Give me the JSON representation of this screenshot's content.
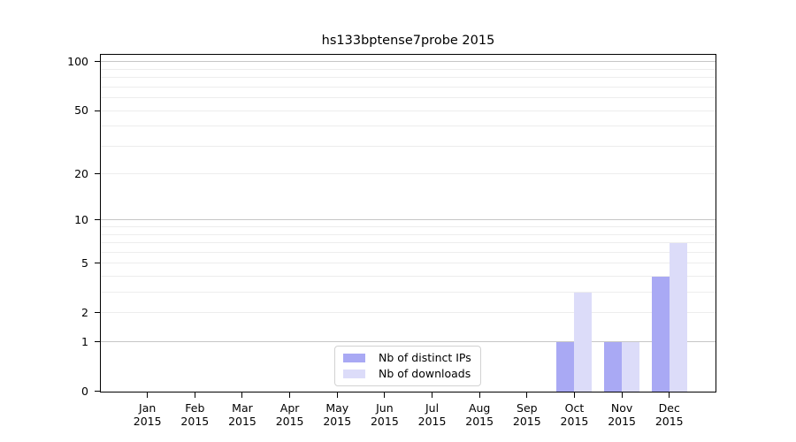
{
  "chart_data": {
    "type": "bar",
    "title": "hs133bptense7probe 2015",
    "categories": [
      "Jan 2015",
      "Feb 2015",
      "Mar 2015",
      "Apr 2015",
      "May 2015",
      "Jun 2015",
      "Jul 2015",
      "Aug 2015",
      "Sep 2015",
      "Oct 2015",
      "Nov 2015",
      "Dec 2015"
    ],
    "series": [
      {
        "name": "Nb of distinct IPs",
        "color": "#a9a9f4",
        "values": [
          0,
          0,
          0,
          0,
          0,
          0,
          0,
          0,
          0,
          1,
          1,
          4
        ]
      },
      {
        "name": "Nb of downloads",
        "color": "#dcdcf9",
        "values": [
          0,
          0,
          0,
          0,
          0,
          0,
          0,
          0,
          0,
          3,
          1,
          7
        ]
      }
    ],
    "xlabel": "",
    "ylabel": "",
    "yscale": "log1p",
    "ylim": [
      0,
      110
    ],
    "ytick_values": [
      0,
      1,
      2,
      5,
      10,
      20,
      50,
      100
    ],
    "ytick_labels": [
      "0",
      "1",
      "2",
      "5",
      "10",
      "20",
      "50",
      "100"
    ],
    "y_major_gridlines": [
      1,
      10,
      100
    ],
    "y_minor_gridlines": [
      2,
      3,
      4,
      5,
      6,
      7,
      8,
      9,
      20,
      30,
      40,
      50,
      60,
      70,
      80,
      90
    ],
    "grid": "horizontal",
    "legend_position": "lower center"
  },
  "colors": {
    "grid_major": "#c6c6c6",
    "grid_minor": "#ededed",
    "spine": "#000000",
    "background": "#ffffff",
    "text": "#000000"
  }
}
